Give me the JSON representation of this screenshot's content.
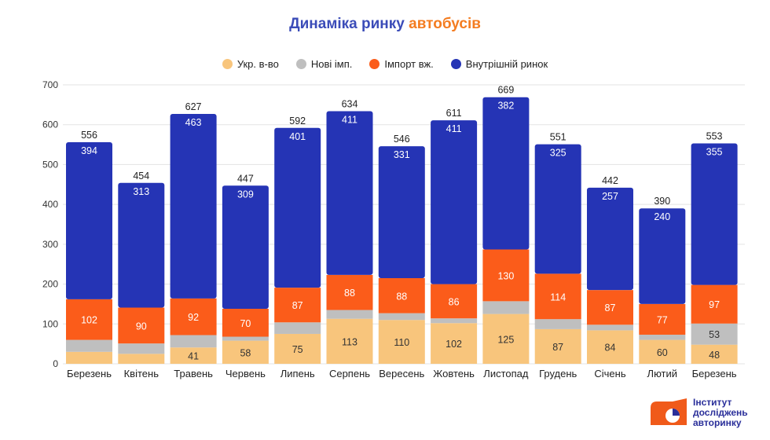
{
  "title_part1": "Динаміка ринку",
  "title_part2": "автобусів",
  "colors": {
    "ukr": "#f8c57c",
    "new": "#bfbfbf",
    "import": "#fb5c1a",
    "domestic": "#2534b5"
  },
  "legend": [
    "Укр. в-во",
    "Нові імп.",
    "Імпорт вж.",
    "Внутрішній ринок"
  ],
  "logo_text": [
    "Інститут",
    "досліджень",
    "авторинку"
  ],
  "chart_data": {
    "type": "bar",
    "stacked": true,
    "categories": [
      "Березень",
      "Квітень",
      "Травень",
      "Червень",
      "Липень",
      "Серпень",
      "Вересень",
      "Жовтень",
      "Листопад",
      "Грудень",
      "Січень",
      "Лютий",
      "Березень"
    ],
    "series": [
      {
        "name": "Укр. в-во",
        "values": [
          30,
          25,
          41,
          58,
          75,
          113,
          110,
          102,
          125,
          87,
          84,
          60,
          48
        ],
        "labels": [
          null,
          null,
          "41",
          "58",
          "75",
          "113",
          "110",
          "102",
          "125",
          "87",
          "84",
          "60",
          "48"
        ]
      },
      {
        "name": "Нові імп.",
        "values": [
          30,
          26,
          31,
          10,
          29,
          22,
          17,
          12,
          32,
          25,
          14,
          13,
          53
        ],
        "labels": [
          null,
          null,
          null,
          null,
          null,
          null,
          null,
          null,
          null,
          null,
          null,
          null,
          "53"
        ]
      },
      {
        "name": "Імпорт вж.",
        "values": [
          102,
          90,
          92,
          70,
          87,
          88,
          88,
          86,
          130,
          114,
          87,
          77,
          97
        ],
        "labels": [
          "102",
          "90",
          "92",
          "70",
          "87",
          "88",
          "88",
          "86",
          "130",
          "114",
          "87",
          "77",
          "97"
        ]
      },
      {
        "name": "Внутрішній ринок",
        "values": [
          394,
          313,
          463,
          309,
          401,
          411,
          331,
          411,
          382,
          325,
          257,
          240,
          355
        ],
        "labels": [
          "394",
          "313",
          "463",
          "309",
          "401",
          "411",
          "331",
          "411",
          "382",
          "325",
          "257",
          "240",
          "355"
        ]
      }
    ],
    "totals": [
      556,
      454,
      627,
      447,
      592,
      634,
      546,
      611,
      669,
      551,
      442,
      390,
      553
    ],
    "ylim": [
      0,
      700
    ],
    "yticks": [
      0,
      100,
      200,
      300,
      400,
      500,
      600,
      700
    ],
    "grid": true,
    "legend_position": "top"
  }
}
